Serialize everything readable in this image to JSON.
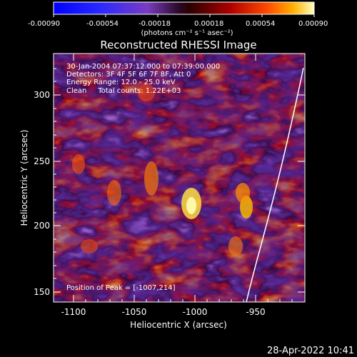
{
  "colorbar": {
    "ticks": [
      "-0.00090",
      "-0.00054",
      "-0.00018",
      "0.00018",
      "0.00054",
      "0.00090"
    ],
    "units": "(photons cm⁻² s⁻¹ asec⁻²)"
  },
  "plot": {
    "title": "Reconstructed RHESSI Image",
    "info_lines": [
      "30-Jan-2004 07:37:12.000 to 07:39:00.000",
      "Detectors: 3F 4F 5F 6F 7F 8F, Att 0",
      "Energy Range: 12.0 - 25.0 keV",
      "Clean     Total counts: 1.22E+03"
    ],
    "peak_label": "Position of Peak = [-1007,214]",
    "xlabel": "Heliocentric X (arcsec)",
    "ylabel": "Heliocentric Y (arcsec)",
    "xticks": [
      "-1100",
      "-1050",
      "-1000",
      "-950"
    ],
    "yticks": [
      "150",
      "200",
      "250",
      "300"
    ]
  },
  "footer": {
    "timestamp": "28-Apr-2022 10:41"
  }
}
